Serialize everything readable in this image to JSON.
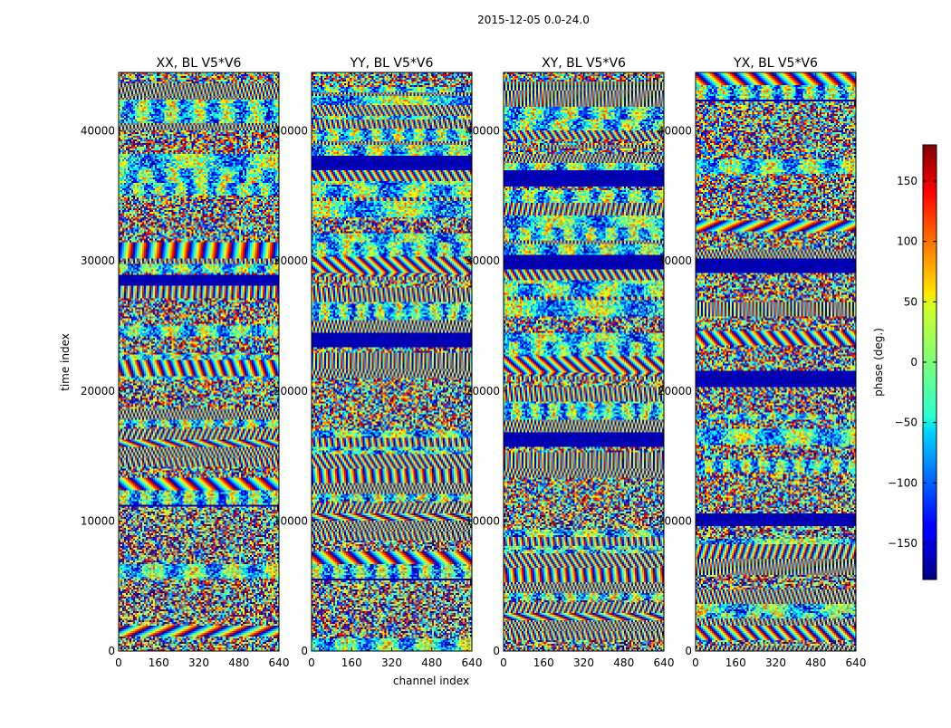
{
  "chart_data": {
    "type": "heatmap",
    "suptitle": "2015-12-05 0.0-24.0",
    "xlabel": "channel index",
    "ylabel": "time index",
    "xlim": [
      0,
      640
    ],
    "ylim": [
      0,
      44500
    ],
    "x_ticks": [
      0,
      160,
      320,
      480,
      640
    ],
    "y_ticks": [
      0,
      10000,
      20000,
      30000,
      40000
    ],
    "colormap": "jet",
    "panels": [
      {
        "title": "XX, BL V5*V6"
      },
      {
        "title": "YY, BL V5*V6"
      },
      {
        "title": "XY, BL V5*V6"
      },
      {
        "title": "YX, BL V5*V6"
      }
    ],
    "colorbar": {
      "label": "phase (deg.)",
      "range": [
        -180,
        180
      ],
      "ticks": [
        -150,
        -100,
        -50,
        0,
        50,
        100,
        150
      ],
      "tick_labels": [
        "−150",
        "−100",
        "−50",
        "0",
        "50",
        "100",
        "150"
      ]
    }
  }
}
